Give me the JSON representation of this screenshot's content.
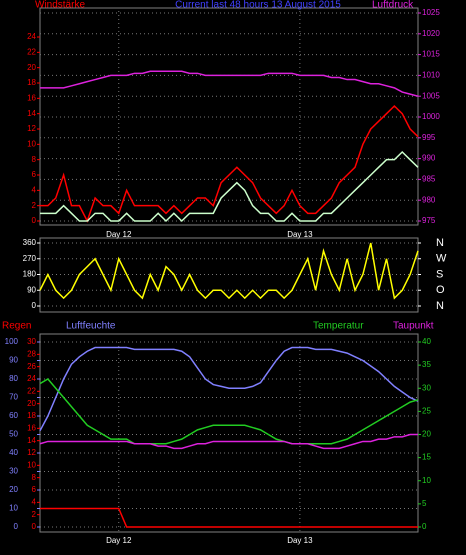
{
  "chart_data": [
    {
      "type": "line",
      "title": "Current last 48 hours 13 August 2015",
      "categories": [
        null,
        null,
        null,
        null,
        null,
        null,
        null,
        null,
        null,
        null,
        "Day 12",
        null,
        null,
        null,
        null,
        null,
        null,
        null,
        null,
        null,
        null,
        null,
        null,
        null,
        null,
        null,
        null,
        null,
        null,
        null,
        null,
        null,
        null,
        "Day 13",
        null,
        null,
        null,
        null,
        null,
        null,
        null,
        null,
        null,
        null,
        null,
        null,
        null,
        null,
        null
      ],
      "series": [
        {
          "name": "Windstärke",
          "color": "#ff0000",
          "axis": "y",
          "values": [
            2,
            2,
            3,
            6,
            2,
            2,
            0,
            3,
            2,
            2,
            1,
            4,
            2,
            2,
            2,
            2,
            1,
            2,
            1,
            2,
            3,
            3,
            2,
            5,
            6,
            7,
            6,
            5,
            3,
            2,
            1,
            2,
            4,
            2,
            1,
            1,
            2,
            3,
            5,
            6,
            7,
            10,
            12,
            13,
            14,
            15,
            14,
            12,
            11
          ]
        },
        {
          "color": "#ccffcc",
          "axis": "y",
          "values": [
            1,
            1,
            1,
            2,
            1,
            0,
            0,
            1,
            1,
            0,
            0,
            1,
            0,
            0,
            0,
            1,
            0,
            1,
            0,
            1,
            1,
            1,
            1,
            3,
            4,
            5,
            4,
            2,
            1,
            1,
            0,
            0,
            1,
            0,
            0,
            0,
            1,
            1,
            2,
            3,
            4,
            5,
            6,
            7,
            8,
            8,
            9,
            8,
            7
          ]
        },
        {
          "name": "Luftdruck",
          "color": "#dd22dd",
          "axis": "y2",
          "values": [
            1007,
            1007,
            1007,
            1007,
            1007.5,
            1008,
            1008.5,
            1009,
            1009.5,
            1010,
            1010,
            1010,
            1010.5,
            1010.5,
            1011,
            1011,
            1011,
            1011,
            1011,
            1010.5,
            1010.5,
            1010,
            1010,
            1010,
            1010,
            1010,
            1010,
            1010,
            1010,
            1010.5,
            1010.5,
            1010.5,
            1010.5,
            1010,
            1010,
            1010,
            1010,
            1009.5,
            1009.5,
            1009,
            1009,
            1008.5,
            1008,
            1008,
            1007.5,
            1007,
            1006,
            1005.5,
            1005
          ]
        }
      ],
      "ylim": [
        0,
        24
      ],
      "yticks": [
        0,
        2,
        4,
        6,
        8,
        10,
        12,
        14,
        16,
        18,
        20,
        22,
        24
      ],
      "y2lim": [
        975,
        1025
      ],
      "y2ticks": [
        975,
        980,
        985,
        990,
        995,
        1000,
        1005,
        1010,
        1015,
        1020,
        1025
      ],
      "axis_colors": {
        "y": "#ff0000",
        "y2": "#dd22dd"
      },
      "grid": "y2"
    },
    {
      "type": "line",
      "series": [
        {
          "color": "#ffff00",
          "axis": "y",
          "values": [
            90,
            180,
            90,
            45,
            90,
            180,
            225,
            270,
            180,
            90,
            270,
            180,
            90,
            45,
            180,
            90,
            225,
            180,
            90,
            180,
            90,
            45,
            90,
            90,
            45,
            90,
            45,
            90,
            45,
            90,
            90,
            45,
            90,
            180,
            270,
            90,
            315,
            180,
            90,
            270,
            90,
            180,
            360,
            90,
            270,
            45,
            90,
            180,
            315
          ]
        }
      ],
      "ylim": [
        0,
        360
      ],
      "yticks": [
        0,
        90,
        180,
        270,
        360
      ],
      "y2lim": [
        0,
        360
      ],
      "y2ticks": [
        {
          "value": 0,
          "label": "N"
        },
        {
          "value": 90,
          "label": "O"
        },
        {
          "value": 180,
          "label": "S"
        },
        {
          "value": 270,
          "label": "W"
        },
        {
          "value": 360,
          "label": "N"
        }
      ],
      "axis_colors": {
        "y": "#ffffff",
        "y2": "#ffffff"
      },
      "grid": "y"
    },
    {
      "type": "line",
      "categories": [
        null,
        null,
        null,
        null,
        null,
        null,
        null,
        null,
        null,
        null,
        "Day 12",
        null,
        null,
        null,
        null,
        null,
        null,
        null,
        null,
        null,
        null,
        null,
        null,
        null,
        null,
        null,
        null,
        null,
        null,
        null,
        null,
        null,
        null,
        "Day 13",
        null,
        null,
        null,
        null,
        null,
        null,
        null,
        null,
        null,
        null,
        null,
        null,
        null,
        null,
        null
      ],
      "series": [
        {
          "name": "Regen",
          "color": "#ff0000",
          "axis": "y",
          "values": [
            3,
            3,
            3,
            3,
            3,
            3,
            3,
            3,
            3,
            3,
            3,
            0,
            0,
            0,
            0,
            0,
            0,
            0,
            0,
            0,
            0,
            0,
            0,
            0,
            0,
            0,
            0,
            0,
            0,
            0,
            0,
            0,
            0,
            0,
            0,
            0,
            0,
            0,
            0,
            0,
            0,
            0,
            0,
            0,
            0,
            0,
            0,
            0,
            0
          ]
        },
        {
          "name": "Luftfeuchte",
          "color": "#8080ff",
          "axis": "y3",
          "values": [
            52,
            60,
            70,
            80,
            88,
            92,
            95,
            97,
            97,
            97,
            97,
            97,
            96,
            96,
            96,
            96,
            96,
            96,
            95,
            92,
            86,
            80,
            77,
            76,
            75,
            75,
            75,
            76,
            78,
            84,
            90,
            95,
            97,
            97,
            97,
            96,
            96,
            96,
            95,
            94,
            92,
            90,
            87,
            84,
            80,
            76,
            73,
            70,
            68
          ]
        },
        {
          "name": "Temperatur",
          "color": "#22cc22",
          "axis": "y2",
          "values": [
            31,
            32,
            30,
            28,
            26,
            24,
            22,
            21,
            20,
            19,
            19,
            19,
            18,
            18,
            18,
            18,
            18,
            18.5,
            19,
            20,
            21,
            21.5,
            22,
            22,
            22,
            22,
            22,
            21.5,
            21,
            20,
            19,
            18.5,
            18,
            18,
            18,
            18,
            18,
            18,
            18.5,
            19,
            20,
            21,
            22,
            23,
            24,
            25,
            26,
            27,
            27.5
          ]
        },
        {
          "name": "Taupunkt",
          "color": "#dd22dd",
          "axis": "y2",
          "values": [
            18,
            18.5,
            18.5,
            18.5,
            18.5,
            18.5,
            18.5,
            18.5,
            18.5,
            18.5,
            18.5,
            18.5,
            18,
            18,
            18,
            17.5,
            17.5,
            17,
            17,
            17.5,
            18,
            18,
            18.5,
            18.5,
            18.5,
            18.5,
            18.5,
            18.5,
            18.5,
            18.5,
            18.5,
            18.5,
            18,
            18,
            18,
            17.5,
            17,
            17,
            17,
            17.5,
            18,
            18.5,
            18.5,
            19,
            19,
            19.5,
            19.5,
            20,
            20
          ]
        }
      ],
      "ylim": [
        0,
        30
      ],
      "yticks": [
        0,
        2,
        4,
        6,
        8,
        10,
        12,
        14,
        16,
        18,
        20,
        22,
        24,
        26,
        28,
        30
      ],
      "y3lim": [
        0,
        100
      ],
      "y3ticks": [
        0,
        10,
        20,
        30,
        40,
        50,
        60,
        70,
        80,
        90,
        100
      ],
      "y2lim": [
        0,
        40
      ],
      "y2ticks": [
        0,
        5,
        10,
        15,
        20,
        25,
        30,
        35,
        40
      ],
      "axis_colors": {
        "y": "#ff0000",
        "y3": "#8080ff",
        "y2": "#22cc22"
      },
      "grid": "y3"
    }
  ]
}
